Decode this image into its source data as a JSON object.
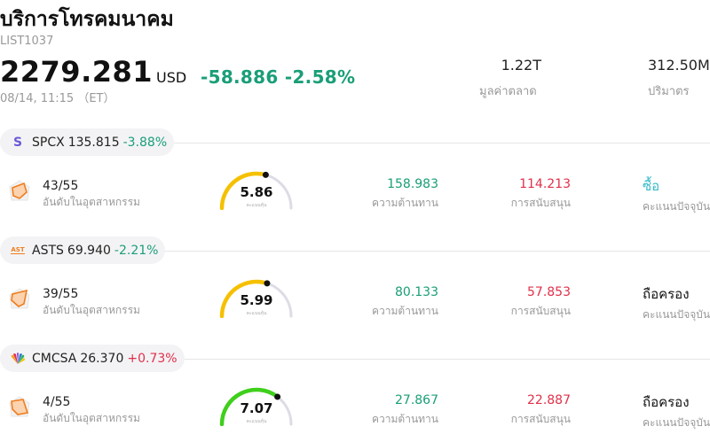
{
  "header": {
    "title": "บริการโทรคมนาคม",
    "code": "LIST1037",
    "price": "2279.281",
    "currency": "USD",
    "change": "-58.886",
    "change_pct": "-2.58%",
    "time": "08/14, 11:15 （ET）",
    "market_cap_value": "1.22T",
    "market_cap_label": "มูลค่าตลาด",
    "volume_value": "312.50M",
    "volume_label": "ปริมาตร"
  },
  "colors": {
    "up": "#e0304a",
    "down": "#1a9e78",
    "gauge_yellow": "#f5c000",
    "gauge_green": "#3fcf1c",
    "gauge_track": "#dcdce6",
    "radar_orange": "#f07d1d"
  },
  "stocks": [
    {
      "symbol": "SPCX",
      "price": "135.815",
      "change_pct": "-3.88%",
      "logo_icon": "spcx-logo-icon",
      "logo_glyph": "S",
      "rank": "43/55",
      "rank_label": "อันดับในอุตสาหกรรม",
      "score": "5.86",
      "score_fraction": 0.586,
      "score_label": "คะแนนหุ้น",
      "resistance": "158.983",
      "resistance_label": "ความต้านทาน",
      "support": "114.213",
      "support_label": "การสนับสนุน",
      "rating": "ซื้อ",
      "rating_label": "คะแนนปัจจุบัน"
    },
    {
      "symbol": "ASTS",
      "price": "69.940",
      "change_pct": "-2.21%",
      "logo_icon": "asts-logo-icon",
      "logo_glyph": "AST",
      "rank": "39/55",
      "rank_label": "อันดับในอุตสาหกรรม",
      "score": "5.99",
      "score_fraction": 0.599,
      "score_label": "คะแนนหุ้น",
      "resistance": "80.133",
      "resistance_label": "ความต้านทาน",
      "support": "57.853",
      "support_label": "การสนับสนุน",
      "rating": "ถือครอง",
      "rating_label": "คะแนนปัจจุบัน"
    },
    {
      "symbol": "CMCSA",
      "price": "26.370",
      "change_pct": "+0.73%",
      "logo_icon": "nbc-peacock-logo-icon",
      "logo_glyph": "",
      "rank": "4/55",
      "rank_label": "อันดับในอุตสาหกรรม",
      "score": "7.07",
      "score_fraction": 0.707,
      "score_label": "คะแนนหุ้น",
      "resistance": "27.867",
      "resistance_label": "ความต้านทาน",
      "support": "22.887",
      "support_label": "การสนับสนุน",
      "rating": "ถือครอง",
      "rating_label": "คะแนนปัจจุบัน"
    }
  ]
}
